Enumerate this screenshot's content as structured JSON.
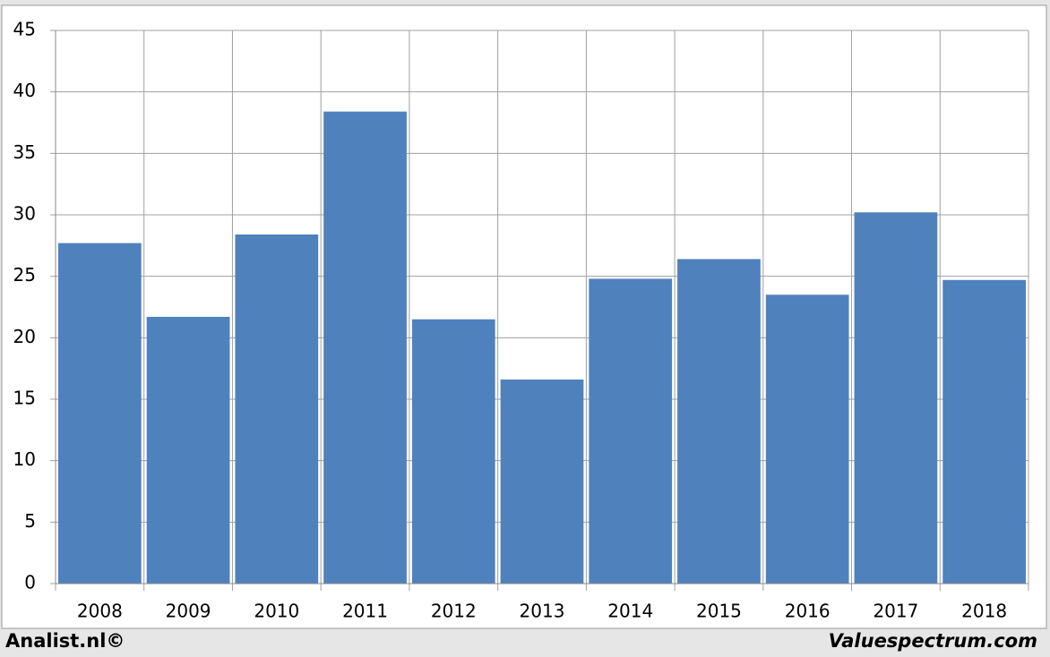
{
  "chart_data": {
    "type": "bar",
    "categories": [
      "2008",
      "2009",
      "2010",
      "2011",
      "2012",
      "2013",
      "2014",
      "2015",
      "2016",
      "2017",
      "2018"
    ],
    "values": [
      27.7,
      21.7,
      28.4,
      38.4,
      21.5,
      16.6,
      24.8,
      26.4,
      23.5,
      30.2,
      24.7
    ],
    "color": "#4f81bd",
    "ylim": [
      0,
      45
    ],
    "yticks": [
      0,
      5,
      10,
      15,
      20,
      25,
      30,
      35,
      40,
      45
    ],
    "grid": true,
    "annotations": [
      "Analist.nl©",
      "Valuespectrum.com"
    ]
  }
}
